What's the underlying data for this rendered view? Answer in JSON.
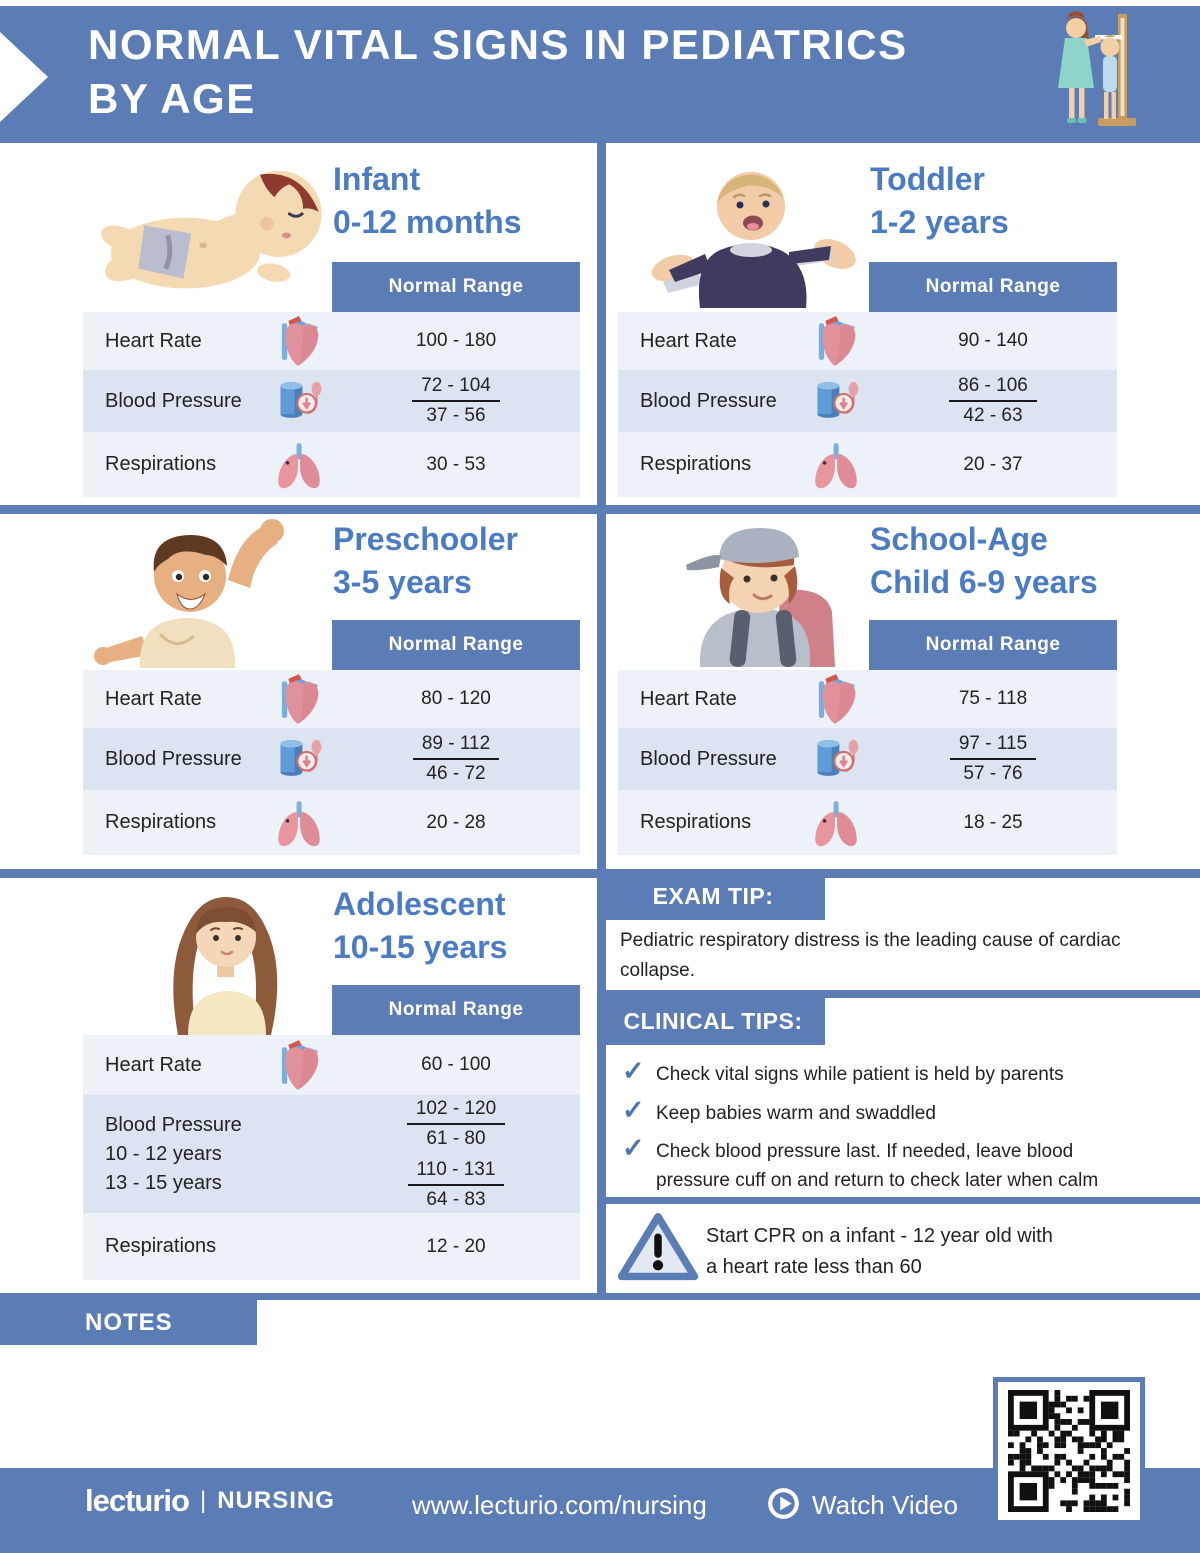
{
  "header": {
    "title_line1": "NORMAL VITAL SIGNS IN PEDIATRICS",
    "title_line2": "BY AGE"
  },
  "labels": {
    "normal_range": "Normal Range",
    "heart_rate": "Heart Rate",
    "blood_pressure": "Blood Pressure",
    "respirations": "Respirations"
  },
  "cards": {
    "infant": {
      "title": "Infant",
      "subtitle": "0-12 months",
      "heart_rate": "100 - 180",
      "bp_systolic": "72 - 104",
      "bp_diastolic": "37 - 56",
      "respirations": "30 - 53"
    },
    "toddler": {
      "title": "Toddler",
      "subtitle": "1-2 years",
      "heart_rate": "90 - 140",
      "bp_systolic": "86 - 106",
      "bp_diastolic": "42 - 63",
      "respirations": "20 - 37"
    },
    "preschooler": {
      "title": "Preschooler",
      "subtitle": "3-5 years",
      "heart_rate": "80 - 120",
      "bp_systolic": "89 - 112",
      "bp_diastolic": "46 - 72",
      "respirations": "20 - 28"
    },
    "school_age": {
      "title": "School-Age",
      "subtitle": "Child 6-9 years",
      "heart_rate": "75 - 118",
      "bp_systolic": "97 - 115",
      "bp_diastolic": "57 - 76",
      "respirations": "18 - 25"
    },
    "adolescent": {
      "title": "Adolescent",
      "subtitle": "10-15 years",
      "heart_rate": "60 - 100",
      "bp_group1_label": "10 - 12 years",
      "bp_group2_label": "13 - 15 years",
      "bp1_systolic": "102 - 120",
      "bp1_diastolic": "61 - 80",
      "bp2_systolic": "110 - 131",
      "bp2_diastolic": "64 - 83",
      "respirations": "12 - 20"
    }
  },
  "exam_tip": {
    "heading": "EXAM TIP:",
    "body": "Pediatric respiratory distress is the leading cause of cardiac collapse."
  },
  "clinical_tips": {
    "heading": "CLINICAL TIPS:",
    "items": [
      "Check vital signs while patient is held by parents",
      "Keep babies warm and swaddled",
      "Check blood pressure last. If needed, leave blood pressure cuff on and return to check later when calm"
    ]
  },
  "warning": {
    "line1": "Start CPR on a infant - 12 year old with",
    "line2": "a heart rate less than 60"
  },
  "notes": {
    "heading": "NOTES"
  },
  "footer": {
    "brand": "lecturio",
    "pipe": "|",
    "brand_suffix": "NURSING",
    "url": "www.lecturio.com/nursing",
    "watch_video_label": "Watch Video"
  },
  "colors": {
    "banner_blue": "#5b7cb5",
    "title_blue": "#4b7bc2",
    "row_light": "#edf1f8",
    "row_dark": "#dce4f1"
  }
}
